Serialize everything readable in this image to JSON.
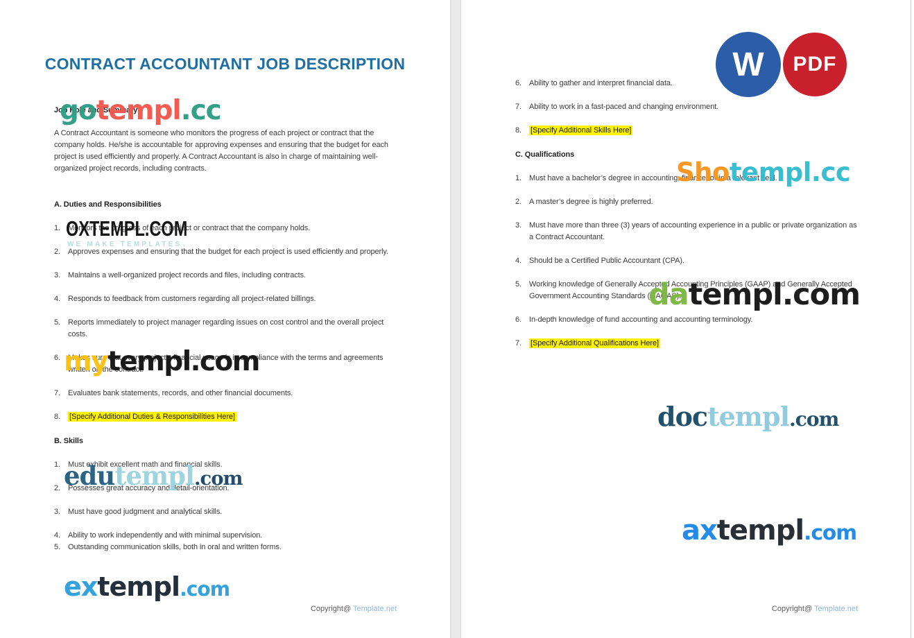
{
  "colors": {
    "title_blue": "#1e6fa3",
    "highlight_yellow": "#fff200",
    "word_icon_blue": "#2c5da8",
    "pdf_icon_red": "#c9202e",
    "footer_link_blue": "#8fb7dc",
    "edge_bar_blue": "#82aec2"
  },
  "icons": {
    "word_label": "W",
    "pdf_label": "PDF"
  },
  "footer": {
    "label": "Copyright@",
    "site": "Template.net"
  },
  "page1": {
    "title": "CONTRACT ACCOUNTANT JOB DESCRIPTION",
    "summary_heading": "Job Role and Summary",
    "summary_text": "A Contract Accountant is someone who monitors the progress of each project or contract that the company holds. He/she is accountable for approving expenses and ensuring that the budget for each project is used efficiently and properly. A Contract Accountant is also in charge of maintaining well-organized project records, including contracts.",
    "duties_heading": "A. Duties and Responsibilities",
    "duties": [
      {
        "n": "1.",
        "text": "Monitors the progress of each project or contract that the company holds.",
        "highlight": false
      },
      {
        "n": "2.",
        "text": "Approves expenses and ensuring that the budget for each project is used efficiently and properly.",
        "highlight": false
      },
      {
        "n": "3.",
        "text": "Maintains a well-organized project records and files, including contracts.",
        "highlight": false
      },
      {
        "n": "4.",
        "text": "Responds to feedback from customers regarding all project-related billings.",
        "highlight": false
      },
      {
        "n": "5.",
        "text": "Reports immediately to project manager regarding issues on cost control and the overall project costs.",
        "highlight": false
      },
      {
        "n": "6.",
        "text": "Makes sure that every project’s financial usage is in compliance with the terms and agreements written on the contract.",
        "highlight": false
      },
      {
        "n": "7.",
        "text": "Evaluates bank statements, records, and other financial documents.",
        "highlight": false
      },
      {
        "n": "8.",
        "text": "[Specify Additional Duties & Responsibilities Here]",
        "highlight": true
      }
    ],
    "skills_heading": "B. Skills",
    "skills": [
      {
        "n": "1.",
        "text": "Must exhibit excellent math and financial skills.",
        "highlight": false
      },
      {
        "n": "2.",
        "text": "Possesses great accuracy and detail-orientation.",
        "highlight": false
      },
      {
        "n": "3.",
        "text": "Must have good judgment and analytical skills.",
        "highlight": false
      },
      {
        "n": "4.",
        "text": "Ability to work independently and with minimal supervision.",
        "highlight": false
      },
      {
        "n": "5.",
        "text": "Outstanding communication skills, both in oral and written forms.",
        "highlight": false
      }
    ]
  },
  "page2": {
    "skills_cont": [
      {
        "n": "6.",
        "text": "Ability to gather and interpret financial data.",
        "highlight": false
      },
      {
        "n": "7.",
        "text": "Ability to work in a fast-paced and changing environment.",
        "highlight": false
      },
      {
        "n": "8.",
        "text": "[Specify Additional Skills Here]",
        "highlight": true
      }
    ],
    "qualifications_heading": "C. Qualifications",
    "qualifications": [
      {
        "n": "1.",
        "text": "Must have a bachelor’s degree in accounting, finance, or in a relevant field.",
        "highlight": false
      },
      {
        "n": "2.",
        "text": "A master’s degree is highly preferred.",
        "highlight": false
      },
      {
        "n": "3.",
        "text": "Must have more than three (3) years of accounting experience in a public or private organization as a Contract Accountant.",
        "highlight": false
      },
      {
        "n": "4.",
        "text": "Should be a Certified Public Accountant (CPA).",
        "highlight": false
      },
      {
        "n": "5.",
        "text": "Working knowledge of Generally Accepted Accounting Principles (GAAP) and Generally Accepted Government Accounting Standards (GAGAS).",
        "highlight": false
      },
      {
        "n": "6.",
        "text": "In-depth knowledge of fund accounting and accounting terminology.",
        "highlight": false
      },
      {
        "n": "7.",
        "text": "[Specify Additional Qualifications Here]",
        "highlight": true
      }
    ]
  },
  "watermarks": {
    "gotempl": {
      "parts": [
        {
          "text": "go",
          "color": "#2f9c84"
        },
        {
          "text": "templ",
          "color": "#f2574d"
        },
        {
          "text": ".cc",
          "color": "#2f9c84"
        }
      ]
    },
    "oxtempl": {
      "text": "OXTEMPL.COM",
      "tagline": "WE MAKE TEMPLATES"
    },
    "mytempl": {
      "parts": [
        {
          "text": "my",
          "color": "#ffc20e"
        },
        {
          "text": "templ.com",
          "color": "#141414"
        }
      ]
    },
    "edutempl": {
      "parts": [
        {
          "text": "edu",
          "color": "#27607f"
        },
        {
          "text": "templ",
          "color": "#9ad3df"
        },
        {
          "text": ".com",
          "color": "#1c4765"
        }
      ]
    },
    "extempl": {
      "parts": [
        {
          "text": "ex",
          "color": "#2e9fdb"
        },
        {
          "text": "templ",
          "color": "#1d2935"
        },
        {
          "text": ".com",
          "color": "#2e9fdb"
        }
      ]
    },
    "shotempl": {
      "parts": [
        {
          "text": "Sho",
          "color": "#f7941e"
        },
        {
          "text": "templ.cc",
          "color": "#35bbcf"
        }
      ]
    },
    "datempl": {
      "parts": [
        {
          "text": "da",
          "color": "#7db742"
        },
        {
          "text": "templ.com",
          "color": "#161616"
        }
      ]
    },
    "doctempl": {
      "parts": [
        {
          "text": "doc",
          "color": "#1c4c68"
        },
        {
          "text": "templ",
          "color": "#8fcadc"
        },
        {
          "text": ".com",
          "color": "#1c4c68"
        }
      ]
    },
    "axtempl": {
      "parts": [
        {
          "text": "ax",
          "color": "#1e88e8"
        },
        {
          "text": "templ",
          "color": "#23292f"
        },
        {
          "text": ".com",
          "color": "#1e88e8"
        }
      ]
    }
  }
}
